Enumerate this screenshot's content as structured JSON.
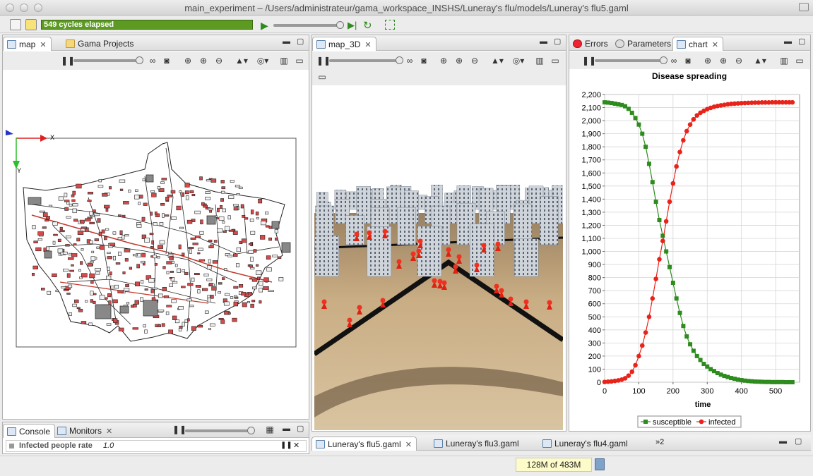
{
  "window": {
    "title": "main_experiment – /Users/administrateur/gama_workspace_INSHS/Luneray's flu/models/Luneray's flu5.gaml"
  },
  "toolbar": {
    "cycles": "549 cycles elapsed"
  },
  "left": {
    "tabs": [
      {
        "label": "map"
      },
      {
        "label": "Gama Projects"
      }
    ],
    "axis_x": "X",
    "axis_y": "Y"
  },
  "middle": {
    "tabs": [
      {
        "label": "map_3D"
      }
    ]
  },
  "right": {
    "tabs": [
      {
        "label": "Errors"
      },
      {
        "label": "Parameters"
      },
      {
        "label": "chart"
      }
    ]
  },
  "console": {
    "tabs": [
      {
        "label": "Console"
      },
      {
        "label": "Monitors"
      }
    ],
    "monitor_label": "Infected people rate",
    "monitor_value": "1.0"
  },
  "editor": {
    "tabs": [
      {
        "label": "Luneray's flu5.gaml"
      },
      {
        "label": "Luneray's flu3.gaml"
      },
      {
        "label": "Luneray's flu4.gaml"
      }
    ],
    "overflow": "2"
  },
  "status": {
    "memory": "128M of 483M"
  },
  "colors": {
    "susceptible": "#2e8b1e",
    "infected": "#e8231a",
    "progress": "#5c9a22"
  },
  "chart_data": {
    "type": "line",
    "title": "Disease spreading",
    "xlabel": "time",
    "ylabel": "",
    "xlim": [
      0,
      570
    ],
    "ylim": [
      0,
      2200
    ],
    "xticks": [
      0,
      100,
      200,
      300,
      400,
      500
    ],
    "yticks": [
      0,
      100,
      200,
      300,
      400,
      500,
      600,
      700,
      800,
      900,
      1000,
      1100,
      1200,
      1300,
      1400,
      1500,
      1600,
      1700,
      1800,
      1900,
      2000,
      2100,
      2200
    ],
    "grid": true,
    "legend": "bottom",
    "x": [
      0,
      10,
      20,
      30,
      40,
      50,
      60,
      70,
      80,
      90,
      100,
      110,
      120,
      130,
      140,
      150,
      160,
      170,
      180,
      190,
      200,
      210,
      220,
      230,
      240,
      250,
      260,
      270,
      280,
      290,
      300,
      310,
      320,
      330,
      340,
      350,
      360,
      370,
      380,
      390,
      400,
      410,
      420,
      430,
      440,
      450,
      460,
      470,
      480,
      490,
      500,
      510,
      520,
      530,
      540,
      549
    ],
    "series": [
      {
        "name": "susceptible",
        "color": "#2e8b1e",
        "marker": "square",
        "values": [
          2140,
          2138,
          2135,
          2130,
          2125,
          2120,
          2110,
          2090,
          2060,
          2020,
          1970,
          1900,
          1800,
          1670,
          1530,
          1380,
          1240,
          1120,
          1000,
          880,
          760,
          640,
          530,
          430,
          350,
          290,
          240,
          200,
          170,
          140,
          120,
          100,
          85,
          70,
          58,
          48,
          40,
          32,
          26,
          20,
          16,
          12,
          9,
          7,
          5,
          4,
          3,
          2,
          2,
          1,
          1,
          1,
          1,
          0,
          0,
          0
        ]
      },
      {
        "name": "infected",
        "color": "#e8231a",
        "marker": "circle",
        "values": [
          2,
          4,
          6,
          10,
          14,
          20,
          30,
          50,
          80,
          130,
          200,
          280,
          380,
          500,
          640,
          790,
          940,
          1080,
          1230,
          1380,
          1520,
          1650,
          1760,
          1850,
          1920,
          1970,
          2010,
          2040,
          2060,
          2075,
          2088,
          2098,
          2106,
          2112,
          2117,
          2121,
          2125,
          2128,
          2130,
          2132,
          2134,
          2135,
          2136,
          2137,
          2138,
          2138,
          2139,
          2139,
          2139,
          2140,
          2140,
          2140,
          2140,
          2140,
          2140,
          2140
        ]
      }
    ]
  }
}
